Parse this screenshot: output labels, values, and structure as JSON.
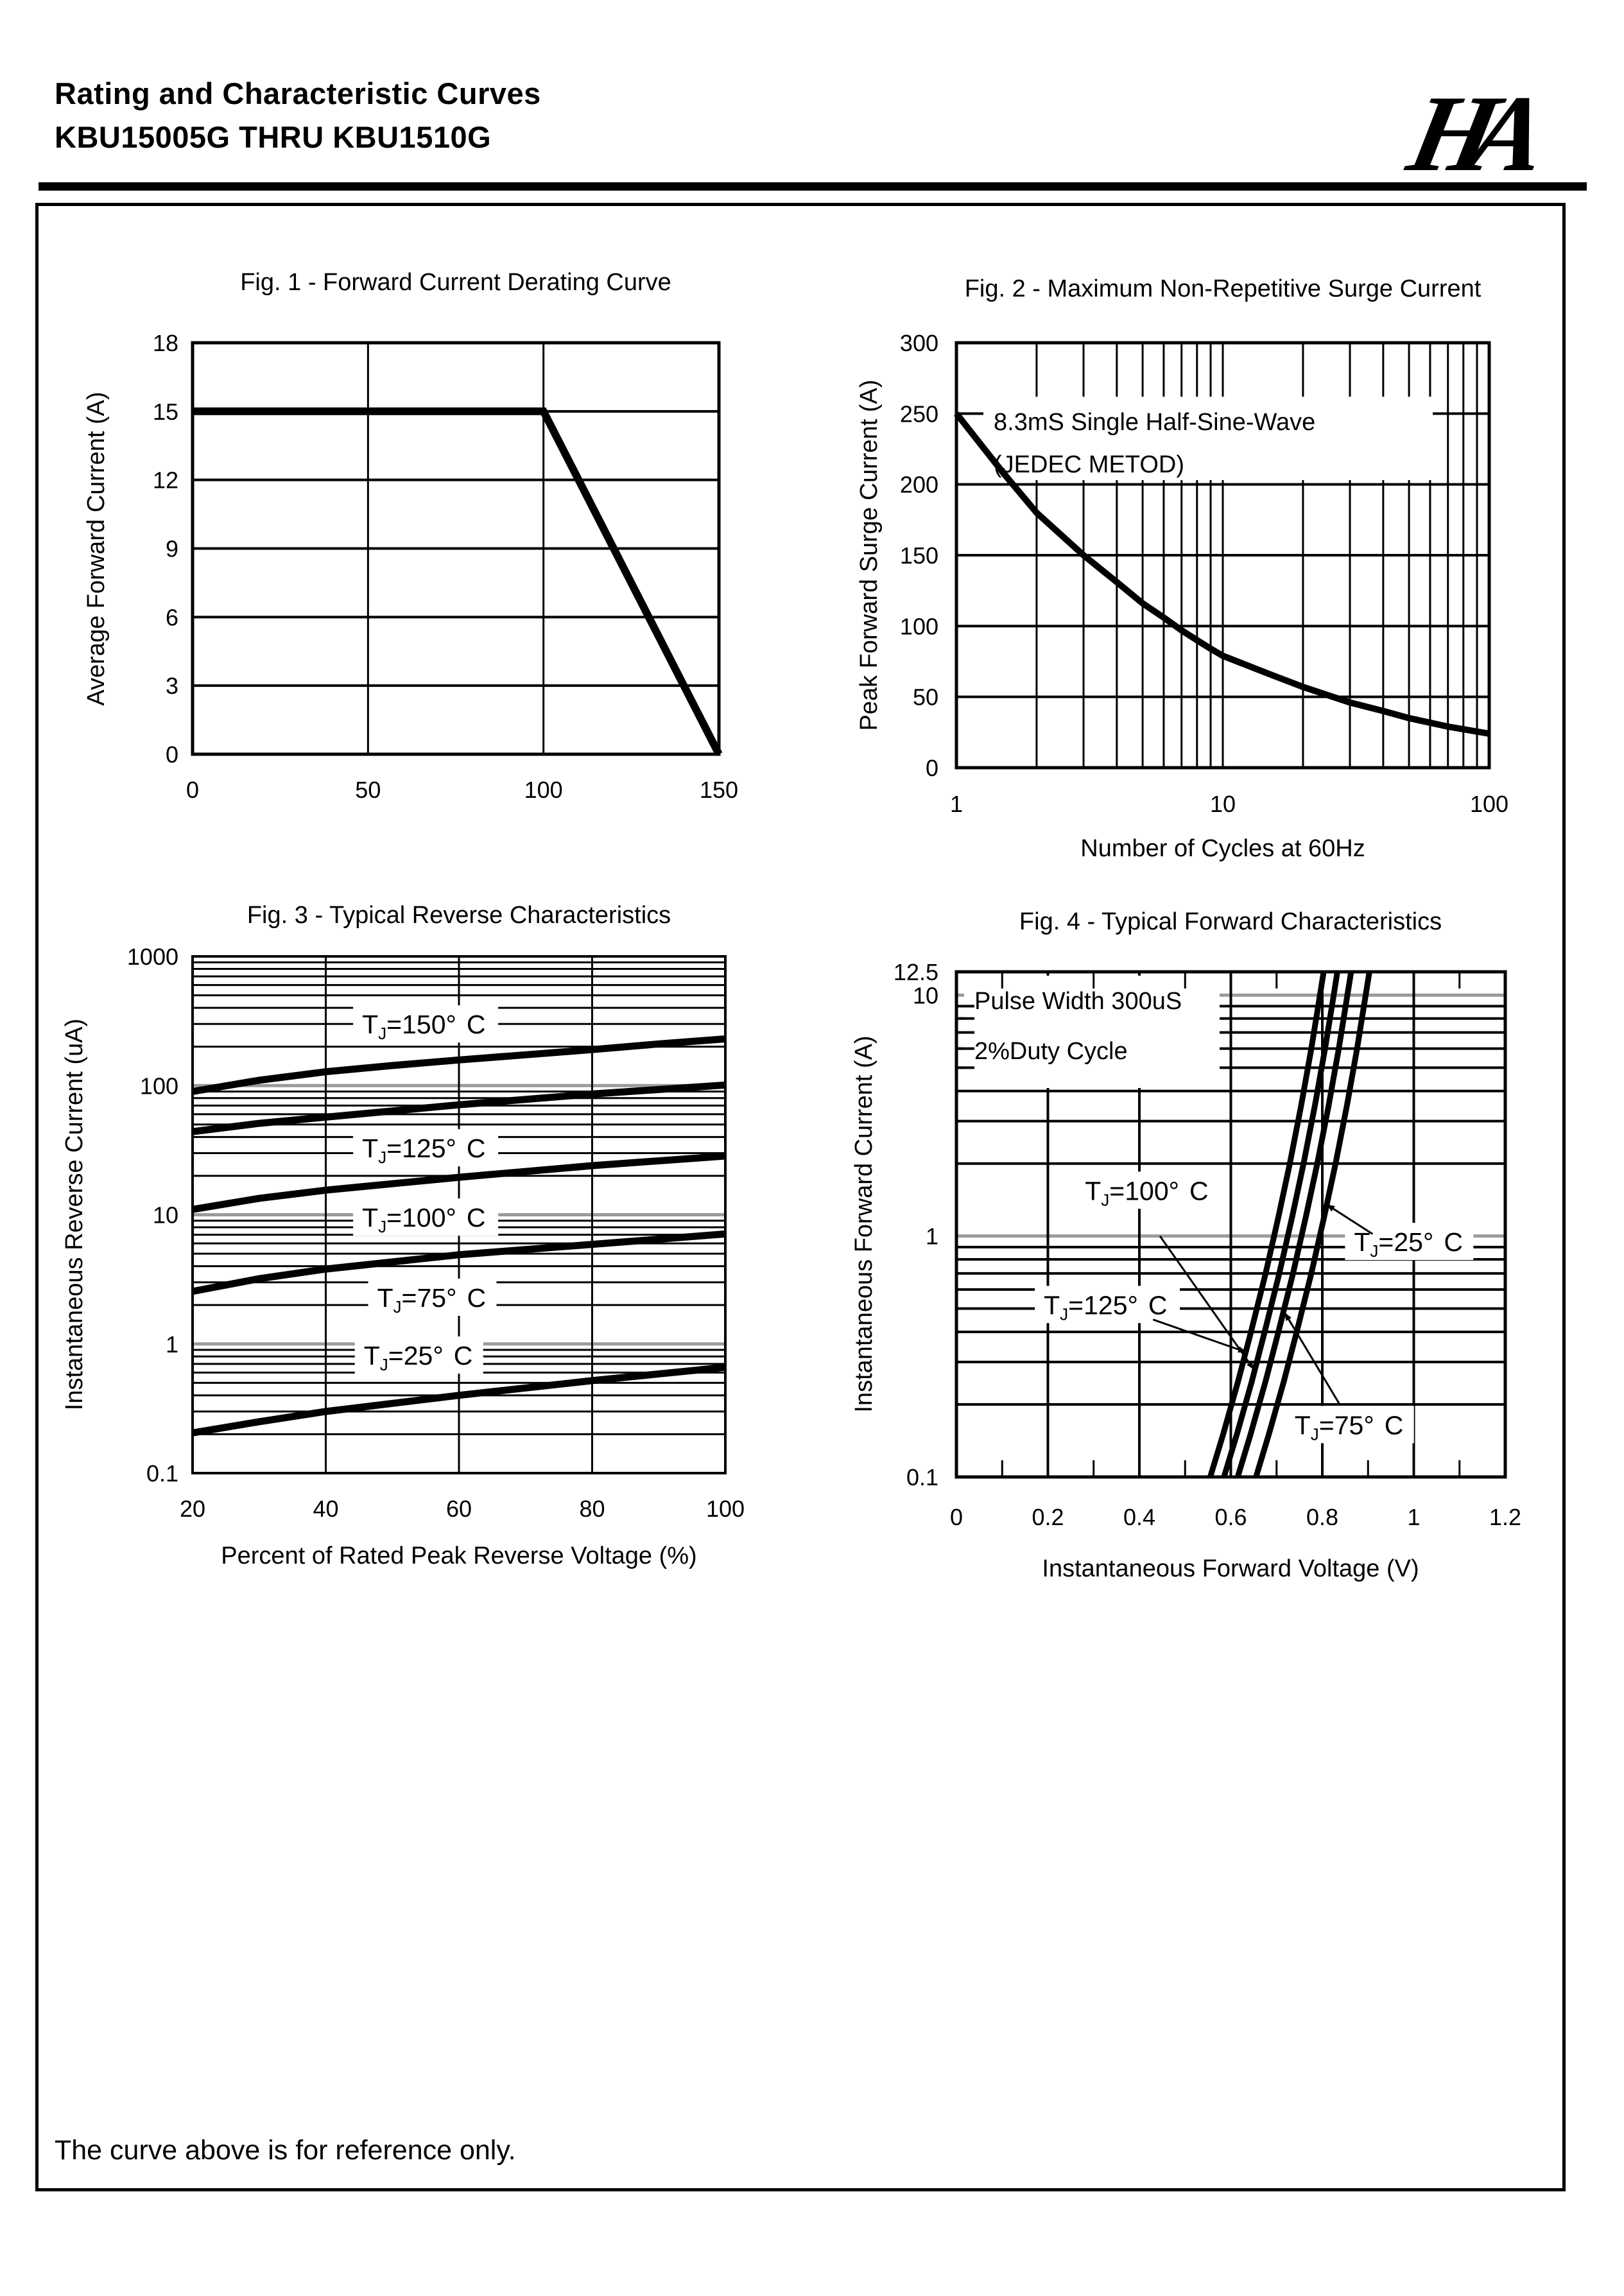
{
  "page": {
    "background": "#ffffff",
    "ink": "#000000",
    "decade_line_color": "#9b9b9b"
  },
  "header": {
    "title": "Rating and Characteristic Curves",
    "subtitle": "KBU15005G THRU KBU1510G",
    "logo_text": "HA"
  },
  "footer": {
    "note": "The curve above is for reference only."
  },
  "chart_data": [
    {
      "name": "fig1",
      "type": "line",
      "title": "Fig. 1 - Forward Current Derating Curve",
      "x": {
        "scale": "linear",
        "min": 0,
        "max": 150,
        "ticks": [
          0,
          50,
          100,
          150
        ],
        "label": ""
      },
      "y": {
        "scale": "linear",
        "min": 0,
        "max": 18,
        "ticks": [
          18,
          15,
          12,
          9,
          6,
          3,
          0
        ],
        "label": "Average Forward Current (A)"
      },
      "series": [
        {
          "name": "derating-curve",
          "points": [
            [
              0,
              15
            ],
            [
              100,
              15
            ],
            [
              150,
              0
            ]
          ]
        }
      ]
    },
    {
      "name": "fig2",
      "type": "line",
      "title": "Fig. 2 - Maximum Non-Repetitive Surge Current",
      "x": {
        "scale": "log",
        "min": 1,
        "max": 100,
        "ticks": [
          1,
          10,
          100
        ],
        "label": "Number of Cycles at 60Hz"
      },
      "y": {
        "scale": "linear",
        "min": 0,
        "max": 300,
        "ticks": [
          300,
          250,
          200,
          150,
          100,
          50,
          0
        ],
        "label": "Peak Forward Surge Current (A)"
      },
      "annotation": [
        "8.3mS Single Half-Sine-Wave",
        "(JEDEC METOD)"
      ],
      "series": [
        {
          "name": "surge-curve",
          "points": [
            [
              1,
              250
            ],
            [
              1.5,
              208
            ],
            [
              2,
              180
            ],
            [
              3,
              150
            ],
            [
              4,
              131
            ],
            [
              5,
              116
            ],
            [
              6,
              106
            ],
            [
              7,
              97
            ],
            [
              8,
              90
            ],
            [
              9,
              84
            ],
            [
              10,
              79
            ],
            [
              15,
              66
            ],
            [
              20,
              57
            ],
            [
              30,
              46
            ],
            [
              40,
              40
            ],
            [
              50,
              35
            ],
            [
              70,
              29
            ],
            [
              100,
              24
            ]
          ]
        }
      ]
    },
    {
      "name": "fig3",
      "type": "line",
      "title": "Fig. 3 - Typical Reverse Characteristics",
      "x": {
        "scale": "linear",
        "min": 20,
        "max": 100,
        "ticks": [
          20,
          40,
          60,
          80,
          100
        ],
        "label": "Percent of Rated Peak Reverse Voltage (%)"
      },
      "y": {
        "scale": "log",
        "min": 0.1,
        "max": 1000,
        "ticks": [
          1000,
          100,
          10,
          1,
          0.1
        ],
        "label": "Instantaneous Reverse Current (uA)"
      },
      "series": [
        {
          "name": "tj-150",
          "label": "TJ=150°C",
          "label_at": [
            55,
            300
          ],
          "points": [
            [
              20,
              90
            ],
            [
              30,
              110
            ],
            [
              40,
              128
            ],
            [
              50,
              143
            ],
            [
              60,
              158
            ],
            [
              70,
              173
            ],
            [
              80,
              190
            ],
            [
              90,
              210
            ],
            [
              100,
              230
            ]
          ]
        },
        {
          "name": "tj-125",
          "label": "TJ=125°C",
          "label_at": [
            55,
            33
          ],
          "points": [
            [
              20,
              44
            ],
            [
              30,
              51
            ],
            [
              40,
              57
            ],
            [
              60,
              71
            ],
            [
              80,
              86
            ],
            [
              100,
              101
            ]
          ]
        },
        {
          "name": "tj-100",
          "label": "TJ=100°C",
          "label_at": [
            55,
            9.6
          ],
          "points": [
            [
              20,
              11
            ],
            [
              30,
              13.4
            ],
            [
              40,
              15.5
            ],
            [
              60,
              19.5
            ],
            [
              80,
              24
            ],
            [
              100,
              28.5
            ]
          ]
        },
        {
          "name": "tj-75",
          "label": "TJ=75°C",
          "label_at": [
            56,
            2.3
          ],
          "points": [
            [
              20,
              2.55
            ],
            [
              30,
              3.2
            ],
            [
              40,
              3.8
            ],
            [
              60,
              4.9
            ],
            [
              80,
              5.9
            ],
            [
              100,
              7.1
            ]
          ]
        },
        {
          "name": "tj-25",
          "label": "TJ=25°C",
          "label_at": [
            54,
            0.82
          ],
          "points": [
            [
              20,
              0.205
            ],
            [
              30,
              0.25
            ],
            [
              40,
              0.3
            ],
            [
              60,
              0.4
            ],
            [
              80,
              0.52
            ],
            [
              100,
              0.66
            ]
          ]
        }
      ]
    },
    {
      "name": "fig4",
      "type": "line",
      "title": "Fig. 4 - Typical Forward Characteristics",
      "x": {
        "scale": "linear",
        "min": 0,
        "max": 1.2,
        "ticks": [
          0,
          0.2,
          0.4,
          0.6,
          0.8,
          1,
          1.2
        ],
        "label": "Instantaneous Forward Voltage (V)"
      },
      "y": {
        "scale": "log",
        "min": 0.1,
        "max": 12.5,
        "ticks": [
          12.5,
          10,
          1,
          0.1
        ],
        "label": "Instantaneous Forward Current (A)"
      },
      "annotation": [
        "Pulse Width 300uS",
        "2%Duty Cycle"
      ],
      "series": [
        {
          "name": "tj-125",
          "label": "TJ=125°C",
          "label_at": [
            0.33,
            0.52
          ],
          "arrow": {
            "from": [
              0.43,
              0.45
            ],
            "to": [
              0.633,
              0.33
            ]
          },
          "points": [
            [
              0.555,
              0.1
            ],
            [
              0.583,
              0.15
            ],
            [
              0.616,
              0.25
            ],
            [
              0.644,
              0.4
            ],
            [
              0.676,
              0.7
            ],
            [
              0.704,
              1.2
            ],
            [
              0.729,
              2
            ],
            [
              0.754,
              3.5
            ],
            [
              0.776,
              6
            ],
            [
              0.791,
              9
            ],
            [
              0.803,
              12.5
            ]
          ]
        },
        {
          "name": "tj-100",
          "label": "TJ=100°C",
          "label_at": [
            0.42,
            1.55
          ],
          "arrow": {
            "from": [
              0.445,
              1.0
            ],
            "to": [
              0.65,
              0.28
            ]
          },
          "points": [
            [
              0.585,
              0.1
            ],
            [
              0.613,
              0.15
            ],
            [
              0.646,
              0.25
            ],
            [
              0.674,
              0.4
            ],
            [
              0.706,
              0.7
            ],
            [
              0.734,
              1.2
            ],
            [
              0.759,
              2
            ],
            [
              0.784,
              3.5
            ],
            [
              0.806,
              6
            ],
            [
              0.821,
              9
            ],
            [
              0.833,
              12.5
            ]
          ]
        },
        {
          "name": "tj-75",
          "label": "TJ=75°C",
          "label_at": [
            0.86,
            0.165
          ],
          "arrow": {
            "from": [
              0.838,
              0.2
            ],
            "to": [
              0.718,
              0.48
            ]
          },
          "points": [
            [
              0.615,
              0.1
            ],
            [
              0.643,
              0.15
            ],
            [
              0.676,
              0.25
            ],
            [
              0.704,
              0.4
            ],
            [
              0.736,
              0.7
            ],
            [
              0.764,
              1.2
            ],
            [
              0.789,
              2
            ],
            [
              0.814,
              3.5
            ],
            [
              0.836,
              6
            ],
            [
              0.851,
              9
            ],
            [
              0.863,
              12.5
            ]
          ]
        },
        {
          "name": "tj-25",
          "label": "TJ=25°C",
          "label_at": [
            0.99,
            0.95
          ],
          "arrow": {
            "from": [
              0.91,
              1.02
            ],
            "to": [
              0.81,
              1.35
            ]
          },
          "points": [
            [
              0.655,
              0.1
            ],
            [
              0.683,
              0.15
            ],
            [
              0.716,
              0.25
            ],
            [
              0.744,
              0.4
            ],
            [
              0.776,
              0.7
            ],
            [
              0.804,
              1.2
            ],
            [
              0.829,
              2
            ],
            [
              0.854,
              3.5
            ],
            [
              0.876,
              6
            ],
            [
              0.891,
              9
            ],
            [
              0.903,
              12.5
            ]
          ]
        }
      ]
    }
  ]
}
